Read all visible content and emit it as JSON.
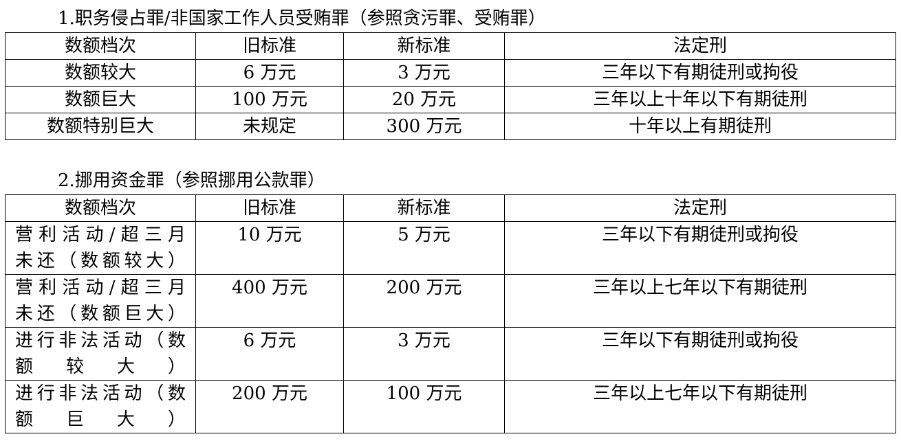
{
  "section1": {
    "title": "1.职务侵占罪/非国家工作人员受贿罪（参照贪污罪、受贿罪）",
    "headers": [
      "数额档次",
      "旧标准",
      "新标准",
      "法定刑"
    ],
    "rows": [
      [
        "数额较大",
        "6 万元",
        "3 万元",
        "三年以下有期徒刑或拘役"
      ],
      [
        "数额巨大",
        "100 万元",
        "20 万元",
        "三年以上十年以下有期徒刑"
      ],
      [
        "数额特别巨大",
        "未规定",
        "300 万元",
        "十年以上有期徒刑"
      ]
    ]
  },
  "section2": {
    "title": "2.挪用资金罪（参照挪用公款罪）",
    "headers": [
      "数额档次",
      "旧标准",
      "新标准",
      "法定刑"
    ],
    "rows": [
      [
        "营利活动/超三月\n未还（数额较大）",
        "10 万元",
        "5 万元",
        "三年以下有期徒刑或拘役"
      ],
      [
        "营利活动/超三月\n未还（数额巨大）",
        "400 万元",
        "200 万元",
        "三年以上七年以下有期徒刑"
      ],
      [
        "进行非法活动（数\n额较大）",
        "6 万元",
        "3 万元",
        "三年以下有期徒刑或拘役"
      ],
      [
        "进行非法活动（数\n额巨大）",
        "200 万元",
        "100 万元",
        "三年以上七年以下有期徒刑"
      ]
    ]
  }
}
